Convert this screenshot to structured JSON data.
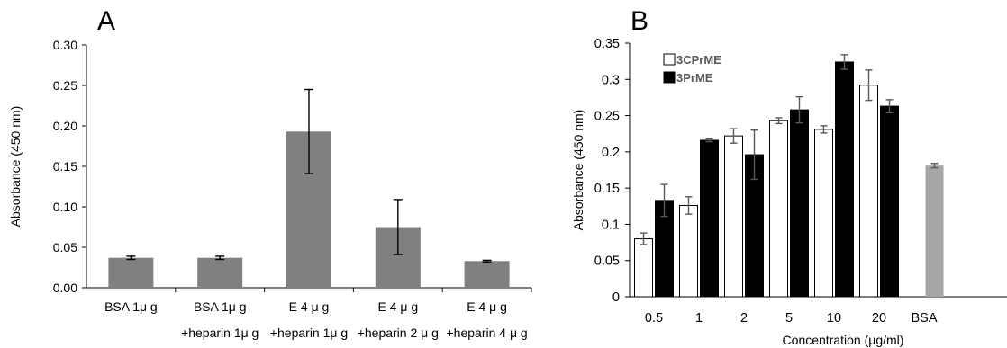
{
  "chart_data": [
    {
      "type": "bar",
      "panel_label": "A",
      "title": "",
      "xlabel": "",
      "ylabel": "Absorbance (450 nm)",
      "ylim": [
        0,
        0.3
      ],
      "yticks": [
        "0.00",
        "0.05",
        "0.10",
        "0.15",
        "0.20",
        "0.25",
        "0.30"
      ],
      "categories": [
        [
          "BSA 1μ g",
          ""
        ],
        [
          "BSA 1μ g",
          "+heparin 1μ g"
        ],
        [
          "E 4 μ g",
          "+heparin 1μ g"
        ],
        [
          "E 4 μ g",
          "+heparin 2 μ g"
        ],
        [
          "E 4 μ g",
          "+heparin 4 μ g"
        ]
      ],
      "values": [
        0.037,
        0.037,
        0.193,
        0.075,
        0.033
      ],
      "errors": [
        0.002,
        0.002,
        0.052,
        0.034,
        0.001
      ],
      "bar_color": "#808080",
      "grid": false,
      "legend": "none"
    },
    {
      "type": "bar",
      "panel_label": "B",
      "title": "",
      "xlabel": "Concentration (μg/ml)",
      "ylabel": "Absorbance (450 nm)",
      "ylim": [
        0,
        0.35
      ],
      "yticks": [
        "0",
        "0.05",
        "0.1",
        "0.15",
        "0.2",
        "0.25",
        "0.3",
        "0.35"
      ],
      "categories": [
        "0.5",
        "1",
        "2",
        "5",
        "10",
        "20",
        "BSA"
      ],
      "series": [
        {
          "name": "3CPrME",
          "color": "#ffffff",
          "values": [
            0.08,
            0.126,
            0.222,
            0.243,
            0.231,
            0.292,
            null
          ],
          "errors": [
            0.008,
            0.012,
            0.01,
            0.004,
            0.005,
            0.021,
            null
          ]
        },
        {
          "name": "3PrME",
          "color": "#000000",
          "values": [
            0.133,
            0.216,
            0.196,
            0.258,
            0.324,
            0.263,
            null
          ],
          "errors": [
            0.022,
            0.002,
            0.034,
            0.018,
            0.01,
            0.009,
            null
          ]
        }
      ],
      "extra_bar": {
        "category": "BSA",
        "value": 0.181,
        "error": 0.003,
        "color": "#a6a6a6"
      },
      "grid": false,
      "legend": "top-left"
    }
  ]
}
